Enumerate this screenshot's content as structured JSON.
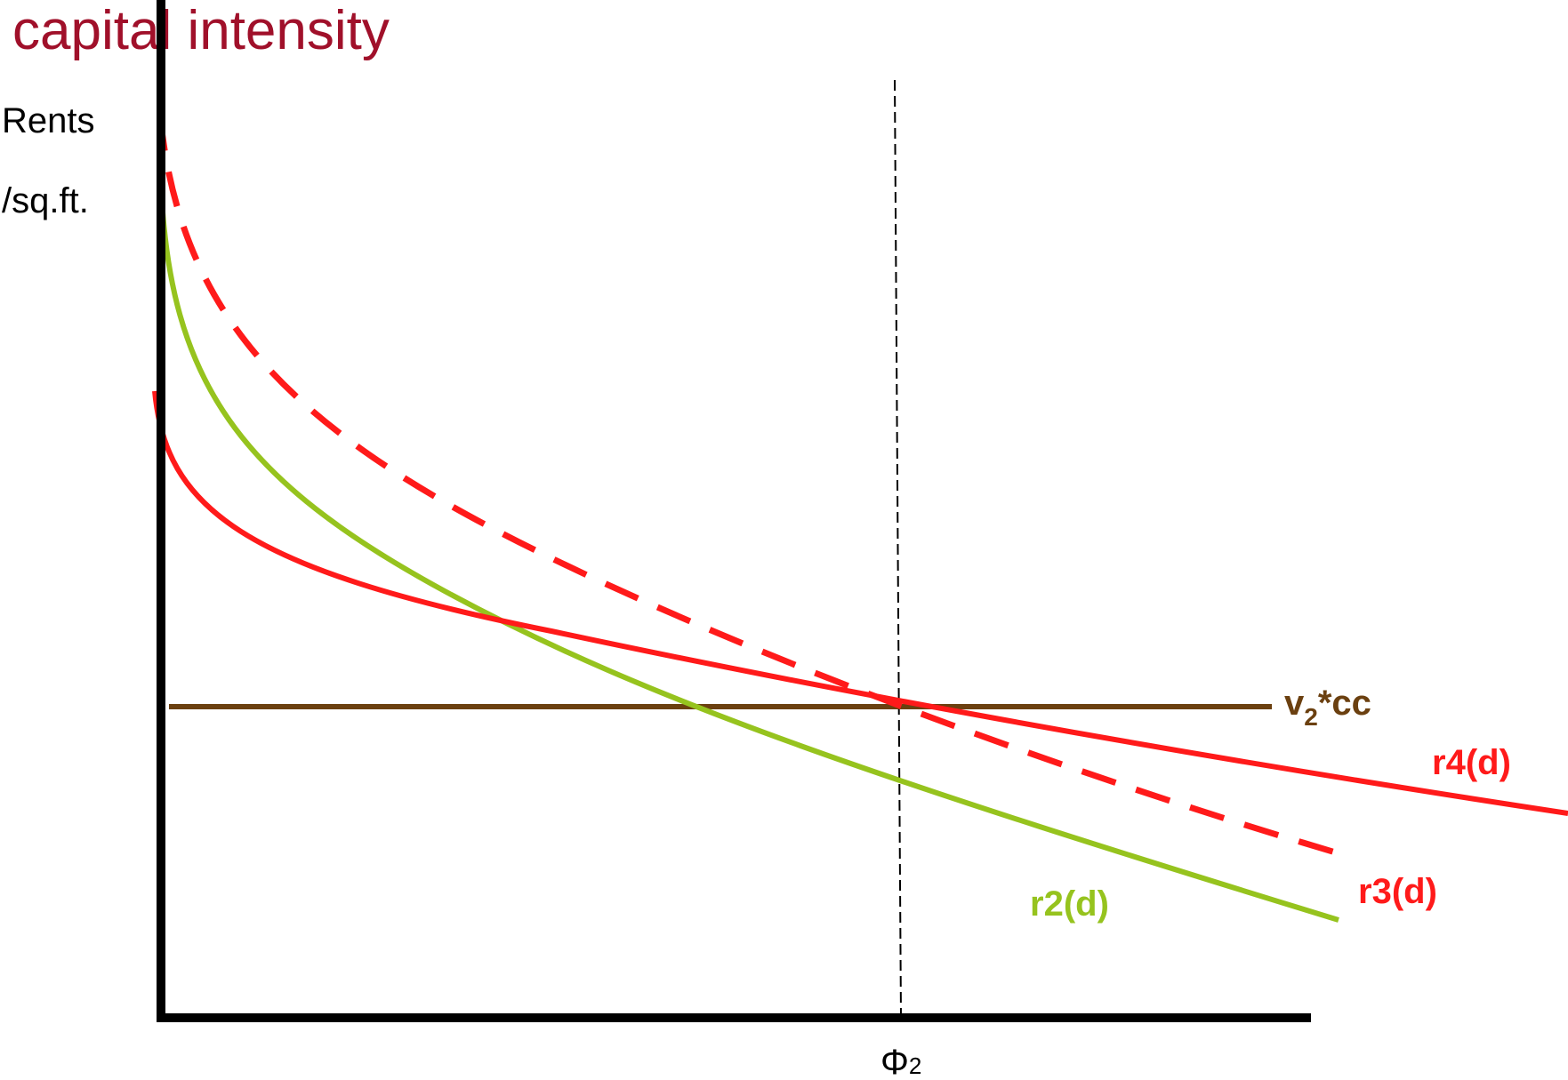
{
  "title": "capital intensity",
  "y_axis": {
    "label_line1": "Rents",
    "label_line2": "/sq.ft."
  },
  "x_axis": {
    "marker_symbol": "Φ",
    "marker_subscript": "2"
  },
  "curves": {
    "r2": "r2(d)",
    "r3": "r3(d)",
    "r4": "r4(d)",
    "construction_cost_main": "v",
    "construction_cost_sub": "2",
    "construction_cost_tail": "*cc"
  },
  "colors": {
    "title": "#a0102a",
    "axes": "#000000",
    "r2": "#96c31e",
    "r3": "#ff1a1a",
    "r4": "#ff1a1a",
    "construction_cost": "#6b4010",
    "dashed_marker": "#000000"
  }
}
